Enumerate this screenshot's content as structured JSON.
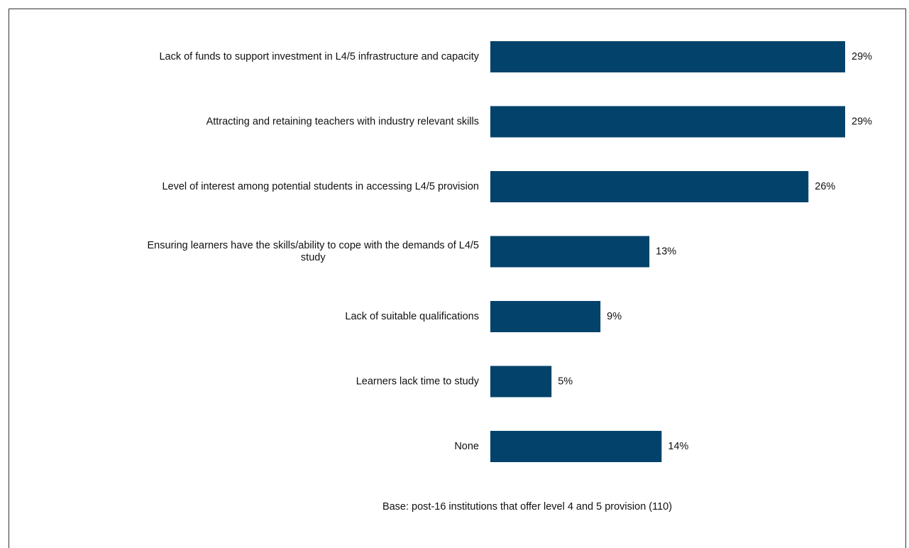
{
  "chart_data": {
    "type": "bar",
    "orientation": "horizontal",
    "categories": [
      [
        "Lack of funds to support investment in L4/5 infrastructure and capacity"
      ],
      [
        "Attracting and retaining teachers with industry relevant skills"
      ],
      [
        "Level of interest among potential students in accessing L4/5 provision"
      ],
      [
        "Ensuring learners have the skills/ability to cope with the demands of L4/5",
        "study"
      ],
      [
        "Lack of suitable qualifications"
      ],
      [
        "Learners lack time to study"
      ],
      [
        "None"
      ]
    ],
    "values": [
      29,
      29,
      26,
      13,
      9,
      5,
      14
    ],
    "value_labels": [
      "29%",
      "29%",
      "26%",
      "13%",
      "9%",
      "5%",
      "14%"
    ],
    "xlim": [
      0,
      29
    ],
    "bar_color": "#03426a",
    "grid": false,
    "legend": "none",
    "note": "Base: post-16 institutions that offer level 4 and 5 provision (110)"
  }
}
